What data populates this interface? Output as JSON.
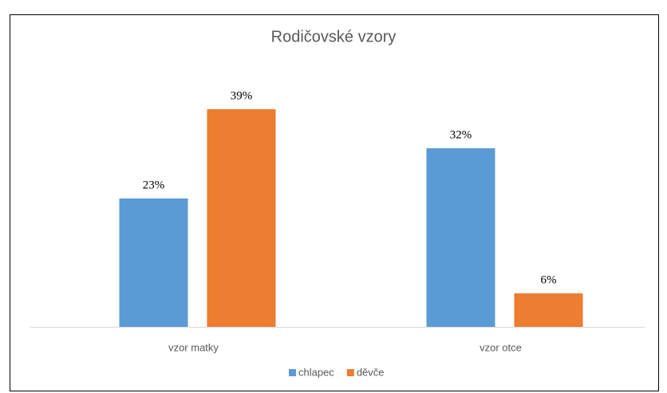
{
  "chart_data": {
    "type": "bar",
    "title": "Rodičovské vzory",
    "categories": [
      "vzor matky",
      "vzor otce"
    ],
    "series": [
      {
        "name": "chlapec",
        "color": "#5b9bd5",
        "values": [
          23,
          32
        ],
        "value_labels": [
          "23%",
          "32%"
        ]
      },
      {
        "name": "děvče",
        "color": "#ed7d31",
        "values": [
          39,
          6
        ],
        "value_labels": [
          "39%",
          "6%"
        ]
      }
    ],
    "legend": "bottom"
  }
}
